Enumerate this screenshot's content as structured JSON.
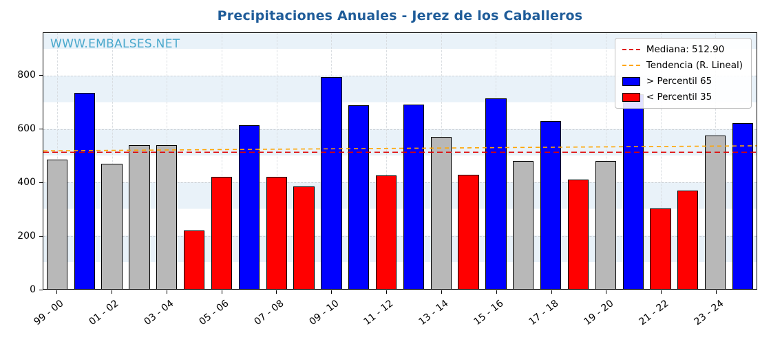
{
  "watermark": "WWW.EMBALSES.NET",
  "legend": {
    "mediana_label": "Mediana: 512.90",
    "tendencia_label": "Tendencia (R. Lineal)",
    "p65_label": "> Percentil 65",
    "p35_label": "< Percentil 35"
  },
  "colors": {
    "title": "#1f5c99",
    "watermark": "#4aa8cc",
    "bar_above_p65": "#0000ff",
    "bar_below_p35": "#ff0000",
    "bar_mid": "#b8b8b8",
    "bar_edge": "#000000",
    "median_line": "#e00000",
    "trend_line": "#ffa500"
  },
  "chart_data": {
    "type": "bar",
    "title": "Precipitaciones Anuales - Jerez de los Caballeros",
    "xlabel": "",
    "ylabel": "",
    "ylim": [
      0,
      960
    ],
    "yticks": [
      0,
      200,
      400,
      600,
      800
    ],
    "grid": true,
    "legend_position": "upper right",
    "x_tick_labels": [
      "99 - 00",
      "01 - 02",
      "03 - 04",
      "05 - 06",
      "07 - 08",
      "09 - 10",
      "11 - 12",
      "13 - 14",
      "15 - 16",
      "17 - 18",
      "19 - 20",
      "21 - 22",
      "23 - 24"
    ],
    "median": 512.9,
    "trend_start": 518,
    "trend_end": 537,
    "bars": [
      {
        "value": 485,
        "band": "mid"
      },
      {
        "value": 735,
        "band": "above"
      },
      {
        "value": 470,
        "band": "mid"
      },
      {
        "value": 540,
        "band": "mid"
      },
      {
        "value": 540,
        "band": "mid"
      },
      {
        "value": 220,
        "band": "below"
      },
      {
        "value": 420,
        "band": "below"
      },
      {
        "value": 615,
        "band": "above"
      },
      {
        "value": 420,
        "band": "below"
      },
      {
        "value": 385,
        "band": "below"
      },
      {
        "value": 795,
        "band": "above"
      },
      {
        "value": 690,
        "band": "above"
      },
      {
        "value": 425,
        "band": "below"
      },
      {
        "value": 692,
        "band": "above"
      },
      {
        "value": 570,
        "band": "mid"
      },
      {
        "value": 428,
        "band": "below"
      },
      {
        "value": 715,
        "band": "above"
      },
      {
        "value": 480,
        "band": "mid"
      },
      {
        "value": 630,
        "band": "above"
      },
      {
        "value": 410,
        "band": "below"
      },
      {
        "value": 480,
        "band": "mid"
      },
      {
        "value": 730,
        "band": "above"
      },
      {
        "value": 303,
        "band": "below"
      },
      {
        "value": 370,
        "band": "below"
      },
      {
        "value": 575,
        "band": "mid"
      },
      {
        "value": 622,
        "band": "above"
      }
    ]
  }
}
